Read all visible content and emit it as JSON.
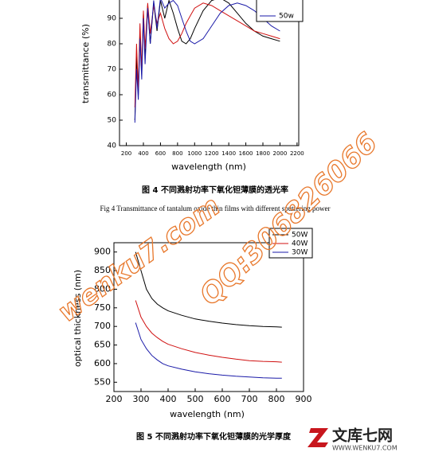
{
  "chart_data": [
    {
      "type": "line",
      "ylabel": "transmittance (%)",
      "xlabel": "wavelength (nm)",
      "caption": "图 4 不同溅射功率下氧化钽薄膜的透光率",
      "caption_en": "Fig 4 Transmittance of tantalum oxide thin films with different sputtering power",
      "xlim": [
        120,
        2220
      ],
      "ylim": [
        40,
        100
      ],
      "xticks": [
        200,
        400,
        600,
        800,
        1000,
        1200,
        1400,
        1600,
        1800,
        2000,
        2200
      ],
      "yticks": [
        40,
        50,
        60,
        70,
        80,
        90
      ],
      "legend": "upper right",
      "x": [
        300,
        320,
        340,
        360,
        380,
        400,
        420,
        450,
        480,
        520,
        560,
        600,
        650,
        700,
        750,
        800,
        850,
        900,
        950,
        1000,
        1100,
        1200,
        1300,
        1400,
        1500,
        1600,
        1700,
        1800,
        1900,
        2000
      ],
      "series": [
        {
          "color": "#000000",
          "values": [
            50,
            75,
            60,
            85,
            68,
            92,
            75,
            95,
            80,
            96,
            85,
            97,
            90,
            97,
            92,
            86,
            81,
            80,
            82,
            86,
            93,
            97,
            98,
            96,
            92,
            88,
            85,
            83,
            82,
            81
          ]
        },
        {
          "color": "#d01010",
          "values": [
            55,
            80,
            62,
            88,
            70,
            93,
            78,
            96,
            84,
            95,
            88,
            92,
            86,
            82,
            80,
            81,
            84,
            88,
            91,
            94,
            96,
            95,
            93,
            91,
            89,
            87,
            85,
            84,
            83,
            82
          ]
        },
        {
          "name": "50w",
          "color": "#1a1aa8",
          "values": [
            49,
            70,
            58,
            82,
            66,
            90,
            72,
            94,
            80,
            97,
            86,
            98,
            94,
            96,
            97,
            95,
            90,
            85,
            81,
            80,
            82,
            87,
            92,
            95,
            96,
            95,
            93,
            90,
            87,
            85
          ]
        }
      ]
    },
    {
      "type": "line",
      "ylabel": "optical thickness (nm)",
      "xlabel": "wavelength (nm)",
      "caption": "图 5 不同溅射功率下氧化钽薄膜的光学厚度",
      "xlim": [
        200,
        900
      ],
      "ylim": [
        525,
        925
      ],
      "xticks": [
        200,
        300,
        400,
        500,
        600,
        700,
        800,
        900
      ],
      "yticks": [
        550,
        600,
        650,
        700,
        750,
        800,
        850,
        900
      ],
      "legend": "upper right",
      "x": [
        280,
        300,
        320,
        340,
        360,
        380,
        400,
        450,
        500,
        550,
        600,
        650,
        700,
        750,
        800,
        820
      ],
      "series": [
        {
          "name": "50W",
          "color": "#000000",
          "values": [
            900,
            850,
            800,
            775,
            760,
            750,
            742,
            730,
            720,
            714,
            709,
            705,
            702,
            700,
            699,
            698
          ]
        },
        {
          "name": "40W",
          "color": "#d01010",
          "values": [
            770,
            725,
            700,
            682,
            670,
            660,
            652,
            640,
            630,
            623,
            617,
            612,
            608,
            606,
            605,
            604
          ]
        },
        {
          "name": "30W",
          "color": "#1a1aa8",
          "values": [
            710,
            665,
            640,
            622,
            610,
            600,
            594,
            585,
            578,
            573,
            569,
            566,
            564,
            562,
            561,
            561
          ]
        }
      ]
    }
  ],
  "watermarks": [
    "wenku7.com",
    "QQ:306826066"
  ],
  "logo": {
    "name": "文库七网",
    "url": "WWW.WENKU7.COM"
  }
}
